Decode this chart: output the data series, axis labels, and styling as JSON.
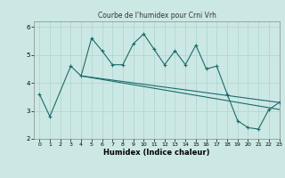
{
  "title": "Courbe de l'humidex pour Crni Vrh",
  "xlabel": "Humidex (Indice chaleur)",
  "ylabel": "",
  "xlim": [
    -0.5,
    23
  ],
  "ylim": [
    2,
    6.2
  ],
  "xticks": [
    0,
    1,
    2,
    3,
    4,
    5,
    6,
    7,
    8,
    9,
    10,
    11,
    12,
    13,
    14,
    15,
    16,
    17,
    18,
    19,
    20,
    21,
    22,
    23
  ],
  "yticks": [
    2,
    3,
    4,
    5,
    6
  ],
  "bg_color": "#cce8e4",
  "line_color": "#1a6b6b",
  "line1_x": [
    0,
    1,
    3,
    4,
    5,
    6,
    7,
    8,
    9,
    10,
    11,
    12,
    13,
    14,
    15,
    16,
    17,
    18,
    19,
    20,
    21,
    22,
    23
  ],
  "line1_y": [
    3.6,
    2.8,
    4.6,
    4.25,
    5.6,
    5.15,
    4.65,
    4.65,
    5.4,
    5.75,
    5.2,
    4.65,
    5.15,
    4.65,
    5.35,
    4.5,
    4.6,
    3.6,
    2.65,
    2.4,
    2.35,
    3.05,
    3.3
  ],
  "line2_x": [
    4,
    23
  ],
  "line2_y": [
    4.25,
    3.3
  ],
  "line3_x": [
    4,
    23
  ],
  "line3_y": [
    4.25,
    3.05
  ]
}
